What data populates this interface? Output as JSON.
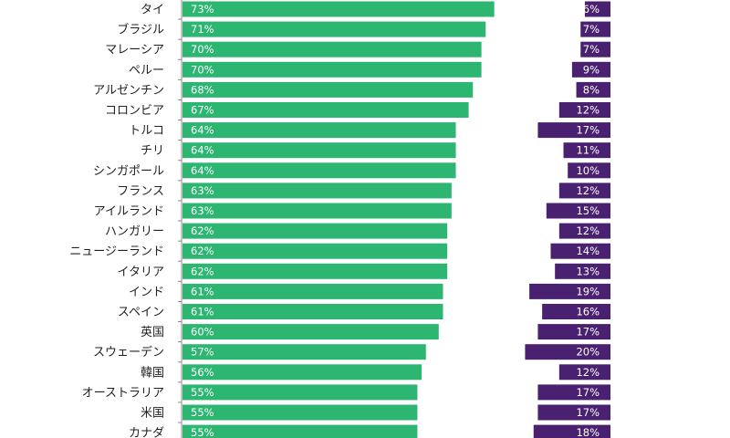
{
  "chart_data": {
    "type": "bar",
    "orientation": "horizontal",
    "categories": [
      "タイ",
      "ブラジル",
      "マレーシア",
      "ペルー",
      "アルゼンチン",
      "コロンビア",
      "トルコ",
      "チリ",
      "シンガポール",
      "フランス",
      "アイルランド",
      "ハンガリー",
      "ニュージーランド",
      "イタリア",
      "インド",
      "スペイン",
      "英国",
      "スウェーデン",
      "韓国",
      "オーストラリア",
      "米国",
      "カナダ"
    ],
    "series": [
      {
        "name": "green",
        "color": "#2db572",
        "values": [
          73,
          71,
          70,
          70,
          68,
          67,
          64,
          64,
          64,
          63,
          63,
          62,
          62,
          62,
          61,
          61,
          60,
          57,
          56,
          55,
          55,
          55
        ]
      },
      {
        "name": "purple",
        "color": "#4a2170",
        "values": [
          6,
          7,
          7,
          9,
          8,
          12,
          17,
          11,
          10,
          12,
          15,
          12,
          14,
          13,
          19,
          16,
          17,
          20,
          12,
          17,
          17,
          18
        ]
      }
    ],
    "value_suffix": "%"
  }
}
